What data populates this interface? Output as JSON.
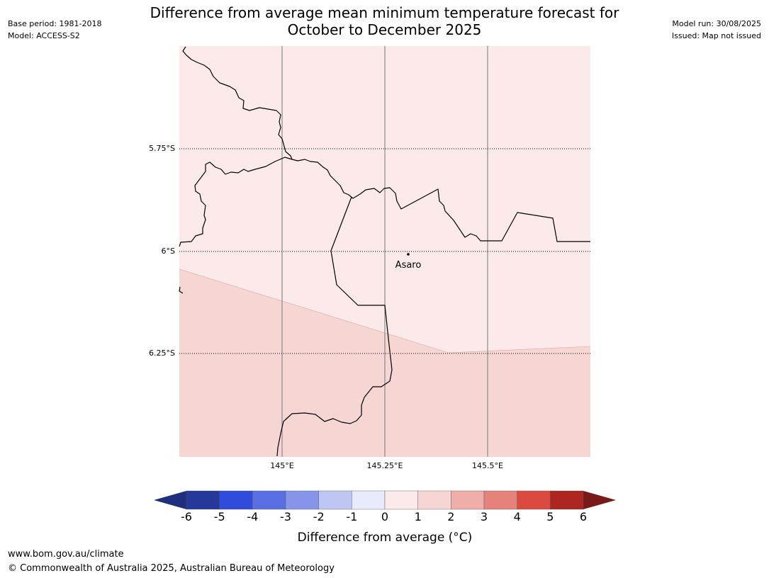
{
  "header": {
    "title_line1": "Difference from average mean minimum temperature forecast for",
    "title_line2": "October to December 2025",
    "base_period": "Base period: 1981-2018",
    "model": "Model: ACCESS-S2",
    "model_run": "Model run: 30/08/2025",
    "issued": "Issued: Map not issued"
  },
  "map": {
    "lat_labels": [
      "5.75°S",
      "6°S",
      "6.25°S"
    ],
    "lon_labels": [
      "145°E",
      "145.25°E",
      "145.5°E"
    ],
    "place_label": "Asaro",
    "colors": {
      "zone_0_1": "#fbeae9",
      "zone_1_2": "#f6d6d3",
      "border": "#000000",
      "meridian": "#8a8a8a"
    }
  },
  "colorbar": {
    "title": "Difference from average (°C)",
    "ticks": [
      "-6",
      "-5",
      "-4",
      "-3",
      "-2",
      "-1",
      "0",
      "1",
      "2",
      "3",
      "4",
      "5",
      "6"
    ],
    "colors": [
      "#26399a",
      "#2f4cdd",
      "#5a6fe4",
      "#8694ea",
      "#bec6f3",
      "#e8ebfb",
      "#fbeae9",
      "#f6d6d3",
      "#efaea8",
      "#e6817b",
      "#da4a3f",
      "#ad2620"
    ],
    "under_color": "#1f2f7e",
    "over_color": "#7a1a18"
  },
  "footer": {
    "url": "www.bom.gov.au/climate",
    "copyright": "© Commonwealth of Australia 2025, Australian Bureau of Meteorology"
  }
}
